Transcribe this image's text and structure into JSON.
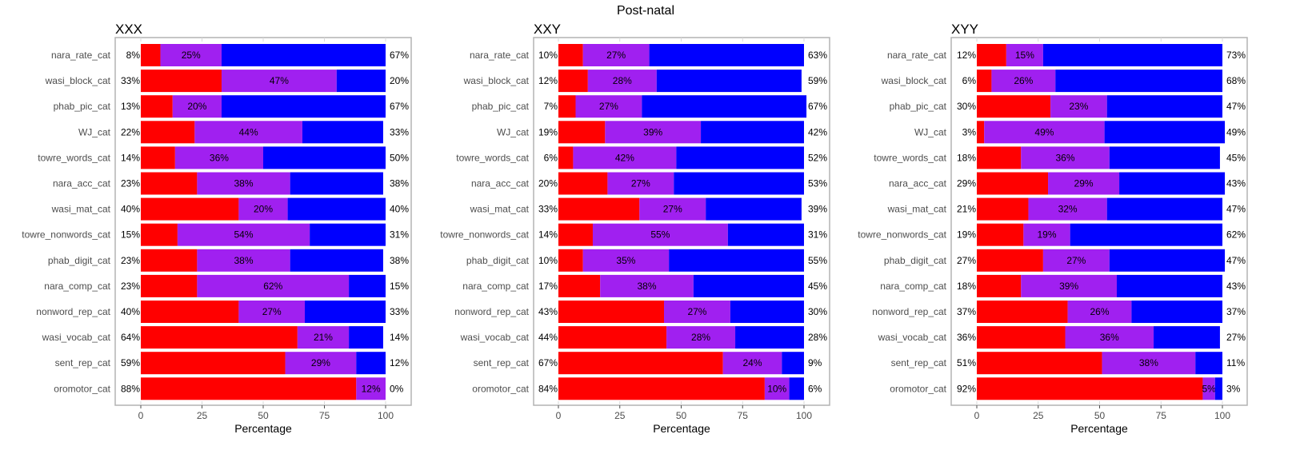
{
  "suptitle": "Post-natal",
  "colors": {
    "low": "#ff0000",
    "mid": "#a020f0",
    "high": "#0000ff",
    "grid": "#d9d9d9",
    "frame": "#b3b3b3"
  },
  "chart_data": [
    {
      "type": "bar",
      "title": "XXX",
      "xlabel": "Percentage",
      "ylabel": "",
      "xlim": [
        0,
        100
      ],
      "xticks": [
        0,
        25,
        50,
        75,
        100
      ],
      "stacked": true,
      "orientation": "horizontal",
      "categories": [
        "nara_rate_cat",
        "wasi_block_cat",
        "phab_pic_cat",
        "WJ_cat",
        "towre_words_cat",
        "nara_acc_cat",
        "wasi_mat_cat",
        "towre_nonwords_cat",
        "phab_digit_cat",
        "nara_comp_cat",
        "nonword_rep_cat",
        "wasi_vocab_cat",
        "sent_rep_cat",
        "oromotor_cat"
      ],
      "series": [
        {
          "values": [
            8,
            33,
            13,
            22,
            14,
            23,
            40,
            15,
            23,
            23,
            40,
            64,
            59,
            88
          ],
          "labels": [
            "8%",
            "33%",
            "13%",
            "22%",
            "14%",
            "23%",
            "40%",
            "15%",
            "23%",
            "23%",
            "40%",
            "64%",
            "59%",
            "88%"
          ]
        },
        {
          "values": [
            25,
            47,
            20,
            44,
            36,
            38,
            20,
            54,
            38,
            62,
            27,
            21,
            29,
            12
          ],
          "labels": [
            "25%",
            "47%",
            "20%",
            "44%",
            "36%",
            "38%",
            "20%",
            "54%",
            "38%",
            "62%",
            "27%",
            "21%",
            "29%",
            "12%"
          ]
        },
        {
          "values": [
            67,
            20,
            67,
            33,
            50,
            38,
            40,
            31,
            38,
            15,
            33,
            14,
            12,
            0
          ],
          "labels": [
            "67%",
            "20%",
            "67%",
            "33%",
            "50%",
            "38%",
            "40%",
            "31%",
            "38%",
            "15%",
            "33%",
            "14%",
            "12%",
            "0%"
          ]
        }
      ]
    },
    {
      "type": "bar",
      "title": "XXY",
      "xlabel": "Percentage",
      "ylabel": "",
      "xlim": [
        0,
        100
      ],
      "xticks": [
        0,
        25,
        50,
        75,
        100
      ],
      "stacked": true,
      "orientation": "horizontal",
      "categories": [
        "nara_rate_cat",
        "wasi_block_cat",
        "phab_pic_cat",
        "WJ_cat",
        "towre_words_cat",
        "nara_acc_cat",
        "wasi_mat_cat",
        "towre_nonwords_cat",
        "phab_digit_cat",
        "nara_comp_cat",
        "nonword_rep_cat",
        "wasi_vocab_cat",
        "sent_rep_cat",
        "oromotor_cat"
      ],
      "series": [
        {
          "values": [
            10,
            12,
            7,
            19,
            6,
            20,
            33,
            14,
            10,
            17,
            43,
            44,
            67,
            84
          ],
          "labels": [
            "10%",
            "12%",
            "7%",
            "19%",
            "6%",
            "20%",
            "33%",
            "14%",
            "10%",
            "17%",
            "43%",
            "44%",
            "67%",
            "84%"
          ]
        },
        {
          "values": [
            27,
            28,
            27,
            39,
            42,
            27,
            27,
            55,
            35,
            38,
            27,
            28,
            24,
            10
          ],
          "labels": [
            "27%",
            "28%",
            "27%",
            "39%",
            "42%",
            "27%",
            "27%",
            "55%",
            "35%",
            "38%",
            "27%",
            "28%",
            "24%",
            "10%"
          ]
        },
        {
          "values": [
            63,
            59,
            67,
            42,
            52,
            53,
            39,
            31,
            55,
            45,
            30,
            28,
            9,
            6
          ],
          "labels": [
            "63%",
            "59%",
            "67%",
            "42%",
            "52%",
            "53%",
            "39%",
            "31%",
            "55%",
            "45%",
            "30%",
            "28%",
            "9%",
            "6%"
          ]
        }
      ]
    },
    {
      "type": "bar",
      "title": "XYY",
      "xlabel": "Percentage",
      "ylabel": "",
      "xlim": [
        0,
        100
      ],
      "xticks": [
        0,
        25,
        50,
        75,
        100
      ],
      "stacked": true,
      "orientation": "horizontal",
      "categories": [
        "nara_rate_cat",
        "wasi_block_cat",
        "phab_pic_cat",
        "WJ_cat",
        "towre_words_cat",
        "nara_acc_cat",
        "wasi_mat_cat",
        "towre_nonwords_cat",
        "phab_digit_cat",
        "nara_comp_cat",
        "nonword_rep_cat",
        "wasi_vocab_cat",
        "sent_rep_cat",
        "oromotor_cat"
      ],
      "series": [
        {
          "values": [
            12,
            6,
            30,
            3,
            18,
            29,
            21,
            19,
            27,
            18,
            37,
            36,
            51,
            92
          ],
          "labels": [
            "12%",
            "6%",
            "30%",
            "3%",
            "18%",
            "29%",
            "21%",
            "19%",
            "27%",
            "18%",
            "37%",
            "36%",
            "51%",
            "92%"
          ]
        },
        {
          "values": [
            15,
            26,
            23,
            49,
            36,
            29,
            32,
            19,
            27,
            39,
            26,
            36,
            38,
            5
          ],
          "labels": [
            "15%",
            "26%",
            "23%",
            "49%",
            "36%",
            "29%",
            "32%",
            "19%",
            "27%",
            "39%",
            "26%",
            "36%",
            "38%",
            "5%"
          ]
        },
        {
          "values": [
            73,
            68,
            47,
            49,
            45,
            43,
            47,
            62,
            47,
            43,
            37,
            27,
            11,
            3
          ],
          "labels": [
            "73%",
            "68%",
            "47%",
            "49%",
            "45%",
            "43%",
            "47%",
            "62%",
            "47%",
            "43%",
            "37%",
            "27%",
            "11%",
            "3%"
          ]
        }
      ]
    }
  ]
}
